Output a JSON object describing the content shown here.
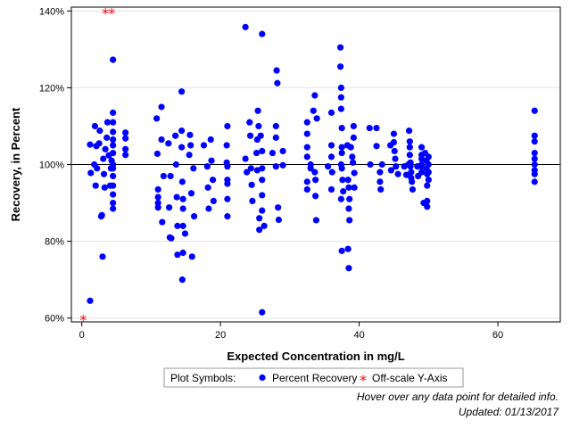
{
  "chart_data": {
    "type": "scatter",
    "xlabel": "Expected Concentration in mg/L",
    "ylabel": "Recovery, in Percent",
    "xlim": [
      -1.5,
      69
    ],
    "ylim": [
      59,
      141
    ],
    "x_ticks": [
      0,
      20,
      40,
      60
    ],
    "x_tick_labels": [
      "0",
      "20",
      "40",
      "60"
    ],
    "y_ticks": [
      60,
      80,
      100,
      120,
      140
    ],
    "y_tick_labels": [
      "60%",
      "80%",
      "100%",
      "120%",
      "140%"
    ],
    "grid": true,
    "reference_line_y": 100,
    "legend_position": "bottom",
    "legend_title": "Plot Symbols:",
    "series": [
      {
        "name": "Percent Recovery",
        "marker": "filled-circle",
        "color": "#0000ff",
        "points": [
          [
            1.2,
            64.5
          ],
          [
            1.2,
            105.2
          ],
          [
            1.3,
            97.8
          ],
          [
            1.8,
            100
          ],
          [
            1.9,
            110
          ],
          [
            2,
            94.5
          ],
          [
            2.1,
            104.8
          ],
          [
            2.2,
            99
          ],
          [
            2.5,
            105.5
          ],
          [
            2.6,
            108.8
          ],
          [
            2.8,
            86.5
          ],
          [
            2.9,
            86.8
          ],
          [
            3,
            76
          ],
          [
            3.1,
            101.5
          ],
          [
            3.2,
            97.5
          ],
          [
            3.3,
            94
          ],
          [
            3.4,
            104
          ],
          [
            3.6,
            107
          ],
          [
            3.7,
            111
          ],
          [
            3.9,
            102.4
          ],
          [
            4.1,
            94.5
          ],
          [
            4.2,
            99
          ],
          [
            4.3,
            101
          ],
          [
            4.5,
            127.3
          ],
          [
            4.5,
            113.5
          ],
          [
            4.5,
            111
          ],
          [
            4.5,
            108.5
          ],
          [
            4.5,
            106.5
          ],
          [
            4.5,
            105
          ],
          [
            4.5,
            103
          ],
          [
            4.5,
            100
          ],
          [
            4.5,
            99
          ],
          [
            4.5,
            97
          ],
          [
            4.5,
            94.5
          ],
          [
            4.5,
            92.2
          ],
          [
            4.5,
            90
          ],
          [
            4.5,
            88.5
          ],
          [
            6.3,
            108.3
          ],
          [
            6.3,
            106.8
          ],
          [
            6.3,
            104
          ],
          [
            6.3,
            102.5
          ],
          [
            10.8,
            112
          ],
          [
            10.9,
            102.8
          ],
          [
            11,
            93.5
          ],
          [
            11,
            91.5
          ],
          [
            11,
            90
          ],
          [
            11,
            88.8
          ],
          [
            11.5,
            115
          ],
          [
            11.5,
            106.5
          ],
          [
            11.6,
            85
          ],
          [
            11.8,
            97
          ],
          [
            12.5,
            105.5
          ],
          [
            12.6,
            88.8
          ],
          [
            12.7,
            81
          ],
          [
            12.8,
            97
          ],
          [
            12.9,
            80.8
          ],
          [
            13.5,
            107.5
          ],
          [
            13.6,
            100
          ],
          [
            13.7,
            91.5
          ],
          [
            13.8,
            84
          ],
          [
            13.8,
            76.5
          ],
          [
            14.4,
            119
          ],
          [
            14.4,
            108.8
          ],
          [
            14.4,
            104.5
          ],
          [
            14.5,
            95.5
          ],
          [
            14.6,
            91
          ],
          [
            14.6,
            88.5
          ],
          [
            14.6,
            84
          ],
          [
            14.6,
            77
          ],
          [
            14.5,
            70
          ],
          [
            14.9,
            82
          ],
          [
            15.5,
            102.5
          ],
          [
            15.6,
            107.7
          ],
          [
            15.7,
            105
          ],
          [
            15.8,
            92.5
          ],
          [
            15.9,
            76
          ],
          [
            16.1,
            99
          ],
          [
            16.2,
            86.5
          ],
          [
            17.6,
            105
          ],
          [
            18.1,
            99.5
          ],
          [
            18.2,
            94
          ],
          [
            18.3,
            88.5
          ],
          [
            18.6,
            106.5
          ],
          [
            18.7,
            101
          ],
          [
            18.9,
            96
          ],
          [
            19,
            90.5
          ],
          [
            20.9,
            105
          ],
          [
            20.9,
            100.5
          ],
          [
            21,
            99.5
          ],
          [
            21,
            95
          ],
          [
            21,
            91
          ],
          [
            21,
            86.5
          ],
          [
            21,
            110
          ],
          [
            21,
            96
          ],
          [
            23.6,
            135.8
          ],
          [
            23.6,
            101.5
          ],
          [
            23.8,
            98
          ],
          [
            24.2,
            111
          ],
          [
            24.3,
            107.5
          ],
          [
            24.4,
            99
          ],
          [
            24.5,
            94.7
          ],
          [
            24.6,
            90.5
          ],
          [
            25.2,
            103
          ],
          [
            25.3,
            106.5
          ],
          [
            25.3,
            98.5
          ],
          [
            25.4,
            114
          ],
          [
            25.5,
            110
          ],
          [
            25.6,
            86
          ],
          [
            25.6,
            83
          ],
          [
            25.8,
            107.5
          ],
          [
            26,
            134
          ],
          [
            26,
            103.5
          ],
          [
            26,
            99
          ],
          [
            26,
            96
          ],
          [
            26,
            92
          ],
          [
            26,
            88
          ],
          [
            26,
            61.5
          ],
          [
            26.3,
            84
          ],
          [
            27.5,
            103
          ],
          [
            28,
            110
          ],
          [
            28,
            107
          ],
          [
            28,
            99.5
          ],
          [
            28.1,
            124.5
          ],
          [
            28.2,
            121.2
          ],
          [
            28.3,
            88.8
          ],
          [
            28.4,
            85.6
          ],
          [
            29,
            103.5
          ],
          [
            29,
            99.8
          ],
          [
            32.5,
            111
          ],
          [
            32.5,
            108
          ],
          [
            32.5,
            104.5
          ],
          [
            32.5,
            102
          ],
          [
            32.5,
            95.5
          ],
          [
            32.5,
            93.5
          ],
          [
            33,
            99
          ],
          [
            33,
            100
          ],
          [
            33.4,
            114
          ],
          [
            33.6,
            98
          ],
          [
            33.6,
            118
          ],
          [
            33.7,
            96
          ],
          [
            33.7,
            91.8
          ],
          [
            33.8,
            85.5
          ],
          [
            33.9,
            112
          ],
          [
            35.5,
            99.5
          ],
          [
            36,
            113.5
          ],
          [
            36,
            105
          ],
          [
            36,
            102
          ],
          [
            36.1,
            98
          ],
          [
            36,
            93.5
          ],
          [
            37.3,
            130.5
          ],
          [
            37.3,
            125.5
          ],
          [
            37.4,
            120
          ],
          [
            37.4,
            117.5
          ],
          [
            37.4,
            114.5
          ],
          [
            37.5,
            109.5
          ],
          [
            37.5,
            104.5
          ],
          [
            37.5,
            103
          ],
          [
            37.4,
            100
          ],
          [
            37.5,
            99
          ],
          [
            37.6,
            96
          ],
          [
            37.7,
            93
          ],
          [
            37.4,
            91
          ],
          [
            37.5,
            77.5
          ],
          [
            38.3,
            105
          ],
          [
            38.4,
            96
          ],
          [
            38.5,
            94
          ],
          [
            38.6,
            91
          ],
          [
            38.5,
            88.5
          ],
          [
            38.6,
            85.5
          ],
          [
            38.4,
            78
          ],
          [
            38.5,
            73
          ],
          [
            38.8,
            104.5
          ],
          [
            39,
            102
          ],
          [
            39.1,
            100.5
          ],
          [
            39.3,
            97.8
          ],
          [
            39.3,
            94
          ],
          [
            39.2,
            107
          ],
          [
            39.2,
            110
          ],
          [
            41.5,
            109.5
          ],
          [
            41.6,
            100
          ],
          [
            42.5,
            109.5
          ],
          [
            42.5,
            104.8
          ],
          [
            43.3,
            100
          ],
          [
            43,
            98
          ],
          [
            43,
            95.5
          ],
          [
            43.1,
            93.5
          ],
          [
            44.5,
            105
          ],
          [
            44.6,
            98.5
          ],
          [
            45,
            108
          ],
          [
            45,
            105.8
          ],
          [
            45.1,
            103.5
          ],
          [
            45.2,
            101.5
          ],
          [
            45.3,
            99.5
          ],
          [
            45.6,
            97.5
          ],
          [
            46.5,
            99.5
          ],
          [
            46.8,
            97.3
          ],
          [
            47.1,
            100
          ],
          [
            47.2,
            108.8
          ],
          [
            47.3,
            106
          ],
          [
            47.3,
            104.5
          ],
          [
            47.3,
            102.5
          ],
          [
            47.4,
            100.5
          ],
          [
            47.4,
            99.5
          ],
          [
            47.5,
            98
          ],
          [
            47.5,
            96.5
          ],
          [
            47.6,
            95.5
          ],
          [
            47.7,
            93.5
          ],
          [
            48.4,
            99.5
          ],
          [
            48.5,
            97
          ],
          [
            49,
            104.5
          ],
          [
            49,
            102.5
          ],
          [
            49,
            101.5
          ],
          [
            49,
            100
          ],
          [
            49,
            99.5
          ],
          [
            49,
            98
          ],
          [
            49.3,
            90
          ],
          [
            49.5,
            103
          ],
          [
            49.7,
            101
          ],
          [
            49.7,
            99
          ],
          [
            49.8,
            97.5
          ],
          [
            49.8,
            94.5
          ],
          [
            49.8,
            89
          ],
          [
            49.8,
            90.5
          ],
          [
            50,
            102
          ],
          [
            50,
            100
          ],
          [
            50,
            98
          ],
          [
            50,
            96
          ],
          [
            65.3,
            114
          ],
          [
            65.3,
            107.5
          ],
          [
            65.3,
            106
          ],
          [
            65.3,
            103
          ],
          [
            65.3,
            101.5
          ],
          [
            65.3,
            100
          ],
          [
            65.3,
            98.5
          ],
          [
            65.3,
            97.5
          ],
          [
            65.3,
            95.5
          ]
        ]
      },
      {
        "name": "Off-scale Y-Axis",
        "marker": "asterisk",
        "color": "#ff0000",
        "points": [
          [
            3.4,
            140
          ],
          [
            4.3,
            140
          ],
          [
            0.2,
            60
          ]
        ]
      }
    ]
  },
  "footnotes": {
    "hover_text": "Hover over any data point for detailed info.",
    "updated_text": "Updated: 01/13/2017"
  }
}
